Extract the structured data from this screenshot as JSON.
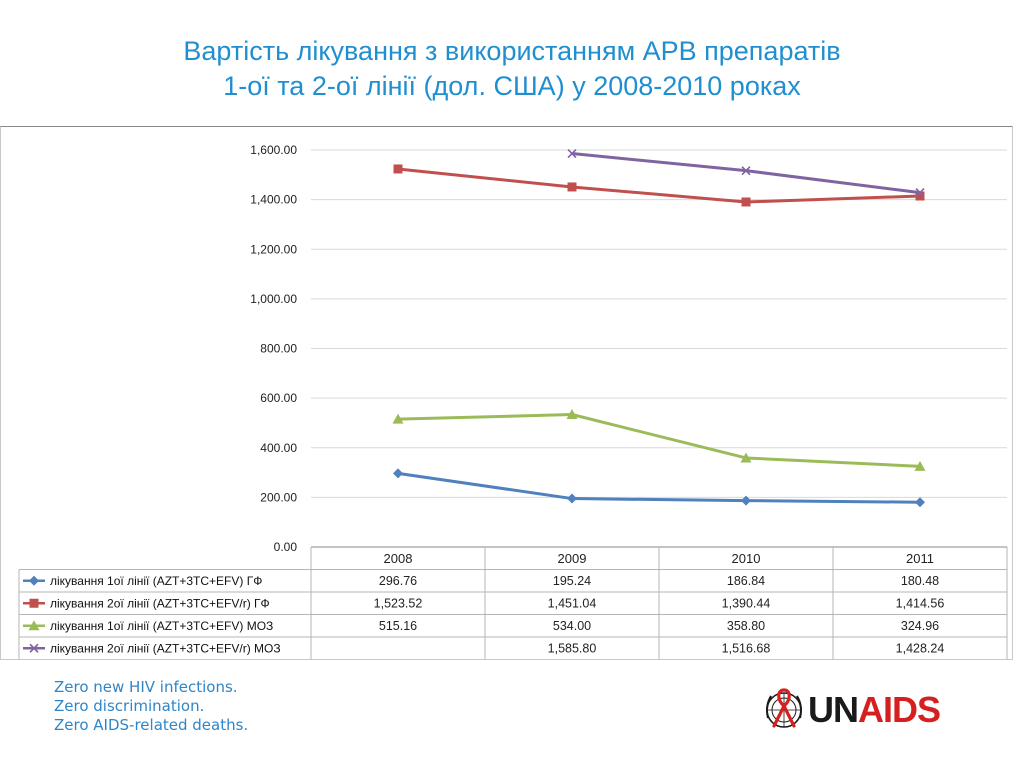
{
  "slide": {
    "title_line1": "Вартість лікування з використанням АРВ препаратів",
    "title_line2": "1-ої та 2-ої лінії (дол. США) у 2008-2010 роках",
    "tagline": [
      "Zero new HIV infections.",
      "Zero discrimination.",
      "Zero AIDS-related deaths."
    ],
    "logo": {
      "un": "UN",
      "aids": "AIDS",
      "colors": {
        "un": "#1a1a1a",
        "aids": "#d5201f"
      },
      "icon": "un-emblem-ribbon-icon"
    }
  },
  "chart_data": {
    "type": "line",
    "title": "",
    "xlabel": "",
    "ylabel": "",
    "categories": [
      "2008",
      "2009",
      "2010",
      "2011"
    ],
    "ylim": [
      0,
      1600
    ],
    "y_ticks": [
      0,
      200,
      400,
      600,
      800,
      1000,
      1200,
      1400,
      1600
    ],
    "y_tick_labels": [
      "0.00",
      "200.00",
      "400.00",
      "600.00",
      "800.00",
      "1,000.00",
      "1,200.00",
      "1,400.00",
      "1,600.00"
    ],
    "grid": true,
    "legend": "bottom-left, in data table",
    "data_table": true,
    "series": [
      {
        "name": "лікування 1ої лінії (AZT+3TC+EFV) ГФ",
        "color": "#4f81bd",
        "marker": "diamond",
        "values": [
          296.76,
          195.24,
          186.84,
          180.48
        ],
        "labels": [
          "296.76",
          "195.24",
          "186.84",
          "180.48"
        ]
      },
      {
        "name": "лікування 2ої лінії (AZT+3TC+EFV/r) ГФ",
        "color": "#c0504d",
        "marker": "square",
        "values": [
          1523.52,
          1451.04,
          1390.44,
          1414.56
        ],
        "labels": [
          "1,523.52",
          "1,451.04",
          "1,390.44",
          "1,414.56"
        ]
      },
      {
        "name": "лікування 1ої лінії (AZT+3TC+EFV) МОЗ",
        "color": "#9bbb59",
        "marker": "triangle",
        "values": [
          515.16,
          534.0,
          358.8,
          324.96
        ],
        "labels": [
          "515.16",
          "534.00",
          "358.80",
          "324.96"
        ]
      },
      {
        "name": "лікування 2ої лінії (AZT+3TC+EFV/r) МОЗ",
        "color": "#8064a2",
        "marker": "x",
        "values": [
          null,
          1585.8,
          1516.68,
          1428.24
        ],
        "labels": [
          "",
          "1,585.80",
          "1,516.68",
          "1,428.24"
        ]
      }
    ]
  }
}
